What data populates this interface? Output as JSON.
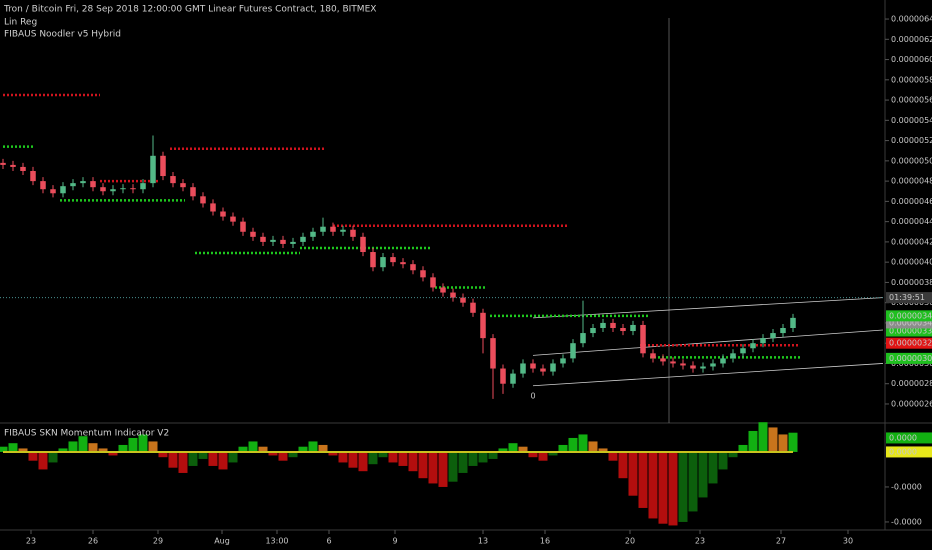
{
  "chart_data": [
    {
      "type": "candlestick",
      "title": "Tron / Bitcoin Fri, 28 Sep 2018 12:00:00 GMT Linear Futures Contract, 180, BITMEX",
      "indicators": [
        "Lin Reg",
        "FIBAUS Noodler v5 Hybrid"
      ],
      "x": [
        0,
        1,
        2,
        3,
        4,
        5,
        6,
        7,
        8,
        9,
        10,
        11,
        12,
        13,
        14,
        15,
        16,
        17,
        18,
        19,
        20,
        21,
        22,
        23,
        24,
        25,
        26,
        27,
        28,
        29,
        30,
        31,
        32,
        33,
        34,
        35,
        36,
        37,
        38,
        39,
        40,
        41,
        42,
        43,
        44,
        45,
        46,
        47,
        48,
        49,
        50,
        51,
        52,
        53,
        54,
        55,
        56,
        57,
        58,
        59,
        60,
        61,
        62,
        63,
        64,
        65,
        66,
        67,
        68,
        69,
        70,
        71,
        72,
        73,
        74,
        75,
        76,
        77,
        78,
        79
      ],
      "open": [
        4.98e-06,
        4.96e-06,
        4.94e-06,
        4.9e-06,
        4.8e-06,
        4.72e-06,
        4.68e-06,
        4.75e-06,
        4.78e-06,
        4.8e-06,
        4.74e-06,
        4.7e-06,
        4.72e-06,
        4.73e-06,
        4.72e-06,
        4.78e-06,
        5.05e-06,
        4.85e-06,
        4.78e-06,
        4.74e-06,
        4.65e-06,
        4.58e-06,
        4.5e-06,
        4.45e-06,
        4.4e-06,
        4.3e-06,
        4.25e-06,
        4.2e-06,
        4.22e-06,
        4.18e-06,
        4.2e-06,
        4.25e-06,
        4.3e-06,
        4.35e-06,
        4.3e-06,
        4.32e-06,
        4.25e-06,
        4.1e-06,
        3.95e-06,
        4.05e-06,
        4e-06,
        3.98e-06,
        3.92e-06,
        3.85e-06,
        3.75e-06,
        3.7e-06,
        3.65e-06,
        3.6e-06,
        3.5e-06,
        3.25e-06,
        2.95e-06,
        2.8e-06,
        2.9e-06,
        3e-06,
        2.95e-06,
        2.92e-06,
        3e-06,
        3.05e-06,
        3.2e-06,
        3.3e-06,
        3.35e-06,
        3.4e-06,
        3.35e-06,
        3.32e-06,
        3.38e-06,
        3.1e-06,
        3.05e-06,
        3.02e-06,
        3e-06,
        2.98e-06,
        2.95e-06,
        2.97e-06,
        3e-06,
        3.05e-06,
        3.1e-06,
        3.15e-06,
        3.2e-06,
        3.25e-06,
        3.3e-06,
        3.35e-06
      ],
      "high": [
        5.02e-06,
        5e-06,
        4.98e-06,
        4.94e-06,
        4.84e-06,
        4.76e-06,
        4.79e-06,
        4.82e-06,
        4.84e-06,
        4.84e-06,
        4.78e-06,
        4.76e-06,
        4.77e-06,
        4.77e-06,
        4.82e-06,
        5.25e-06,
        5.09e-06,
        4.89e-06,
        4.82e-06,
        4.78e-06,
        4.69e-06,
        4.62e-06,
        4.54e-06,
        4.49e-06,
        4.44e-06,
        4.34e-06,
        4.29e-06,
        4.26e-06,
        4.26e-06,
        4.24e-06,
        4.29e-06,
        4.34e-06,
        4.44e-06,
        4.39e-06,
        4.36e-06,
        4.36e-06,
        4.29e-06,
        4.14e-06,
        4.09e-06,
        4.09e-06,
        4.04e-06,
        4.02e-06,
        3.96e-06,
        3.89e-06,
        3.79e-06,
        3.74e-06,
        3.69e-06,
        3.64e-06,
        3.54e-06,
        3.29e-06,
        2.99e-06,
        2.94e-06,
        3.04e-06,
        3.04e-06,
        2.99e-06,
        3.04e-06,
        3.09e-06,
        3.24e-06,
        3.62e-06,
        3.39e-06,
        3.44e-06,
        3.44e-06,
        3.39e-06,
        3.42e-06,
        3.42e-06,
        3.14e-06,
        3.09e-06,
        3.06e-06,
        3.04e-06,
        3.02e-06,
        3.01e-06,
        3.04e-06,
        3.09e-06,
        3.14e-06,
        3.19e-06,
        3.24e-06,
        3.29e-06,
        3.34e-06,
        3.39e-06,
        3.49e-06
      ],
      "low": [
        4.92e-06,
        4.9e-06,
        4.86e-06,
        4.76e-06,
        4.68e-06,
        4.64e-06,
        4.64e-06,
        4.71e-06,
        4.74e-06,
        4.7e-06,
        4.66e-06,
        4.66e-06,
        4.68e-06,
        4.68e-06,
        4.68e-06,
        4.74e-06,
        4.81e-06,
        4.74e-06,
        4.7e-06,
        4.61e-06,
        4.54e-06,
        4.46e-06,
        4.41e-06,
        4.36e-06,
        4.26e-06,
        4.21e-06,
        4.16e-06,
        4.16e-06,
        4.14e-06,
        4.14e-06,
        4.16e-06,
        4.21e-06,
        4.26e-06,
        4.26e-06,
        4.26e-06,
        4.21e-06,
        4.06e-06,
        3.91e-06,
        3.91e-06,
        3.96e-06,
        3.94e-06,
        3.88e-06,
        3.81e-06,
        3.71e-06,
        3.66e-06,
        3.61e-06,
        3.56e-06,
        3.46e-06,
        3.1e-06,
        2.65e-06,
        2.7e-06,
        2.76e-06,
        2.86e-06,
        2.91e-06,
        2.88e-06,
        2.88e-06,
        2.96e-06,
        3.01e-06,
        3.16e-06,
        3.26e-06,
        3.31e-06,
        3.31e-06,
        3.28e-06,
        3.28e-06,
        3.06e-06,
        3.01e-06,
        2.98e-06,
        2.96e-06,
        2.94e-06,
        2.91e-06,
        2.91e-06,
        2.93e-06,
        2.96e-06,
        3.01e-06,
        3.06e-06,
        3.11e-06,
        3.16e-06,
        3.21e-06,
        3.26e-06,
        3.31e-06
      ],
      "close": [
        4.96e-06,
        4.94e-06,
        4.9e-06,
        4.8e-06,
        4.72e-06,
        4.68e-06,
        4.75e-06,
        4.78e-06,
        4.8e-06,
        4.74e-06,
        4.7e-06,
        4.72e-06,
        4.73e-06,
        4.72e-06,
        4.78e-06,
        5.05e-06,
        4.85e-06,
        4.78e-06,
        4.74e-06,
        4.65e-06,
        4.58e-06,
        4.5e-06,
        4.45e-06,
        4.4e-06,
        4.3e-06,
        4.25e-06,
        4.2e-06,
        4.22e-06,
        4.18e-06,
        4.2e-06,
        4.25e-06,
        4.3e-06,
        4.35e-06,
        4.3e-06,
        4.32e-06,
        4.25e-06,
        4.1e-06,
        3.95e-06,
        4.05e-06,
        4e-06,
        3.98e-06,
        3.92e-06,
        3.85e-06,
        3.75e-06,
        3.7e-06,
        3.65e-06,
        3.6e-06,
        3.5e-06,
        3.25e-06,
        2.95e-06,
        2.8e-06,
        2.9e-06,
        3e-06,
        2.95e-06,
        2.92e-06,
        3e-06,
        3.05e-06,
        3.2e-06,
        3.3e-06,
        3.35e-06,
        3.4e-06,
        3.35e-06,
        3.32e-06,
        3.38e-06,
        3.1e-06,
        3.05e-06,
        3.02e-06,
        3e-06,
        2.98e-06,
        2.95e-06,
        2.97e-06,
        3e-06,
        3.05e-06,
        3.1e-06,
        3.15e-06,
        3.2e-06,
        3.25e-06,
        3.3e-06,
        3.35e-06,
        3.45e-06
      ],
      "up_color": "#53b987",
      "down_color": "#eb4d5c",
      "levels": [
        {
          "x": [
            0,
            9.7
          ],
          "value": 5.65e-06,
          "color": "#d0141e"
        },
        {
          "x": [
            16.7,
            32.2
          ],
          "value": 5.12e-06,
          "color": "#d0141e"
        },
        {
          "x": [
            9.7,
            15.7
          ],
          "value": 4.8e-06,
          "color": "#d0141e"
        },
        {
          "x": [
            33,
            56.5
          ],
          "value": 4.36e-06,
          "color": "#d0141e"
        },
        {
          "x": [
            63.7,
            79.7
          ],
          "value": 3.18e-06,
          "color": "#d0141e"
        },
        {
          "x": [
            0,
            3.2
          ],
          "value": 5.14e-06,
          "color": "#1ec81e"
        },
        {
          "x": [
            5.7,
            18.2
          ],
          "value": 4.61e-06,
          "color": "#1ec81e"
        },
        {
          "x": [
            19.2,
            29.7
          ],
          "value": 4.09e-06,
          "color": "#1ec81e"
        },
        {
          "x": [
            29.7,
            42.7
          ],
          "value": 4.14e-06,
          "color": "#1ec81e"
        },
        {
          "x": [
            43.2,
            48.2
          ],
          "value": 3.75e-06,
          "color": "#1ec81e"
        },
        {
          "x": [
            48.7,
            64.7
          ],
          "value": 3.47e-06,
          "color": "#1ec81e"
        },
        {
          "x": [
            64.7,
            79.7
          ],
          "value": 3.06e-06,
          "color": "#1ec81e"
        }
      ],
      "channel": [
        {
          "x": [
            53,
            88
          ],
          "values": [
            3.45e-06,
            3.65e-06
          ],
          "color": "#cfcfcf"
        },
        {
          "x": [
            53,
            88
          ],
          "values": [
            3.08e-06,
            3.33e-06
          ],
          "color": "#cfcfcf"
        },
        {
          "x": [
            53,
            88
          ],
          "values": [
            2.78e-06,
            3e-06
          ],
          "color": "#cfcfcf"
        }
      ],
      "annotations": [
        {
          "text": "0",
          "x": 53,
          "y": 2.68e-06
        }
      ],
      "last_price": {
        "value": 3.65e-06,
        "label": "01:39:51",
        "color": "#4a8f8f"
      },
      "price_labels": [
        {
          "value": 3.47e-06,
          "label": "0.00000347",
          "color": "#1fbf1f"
        },
        {
          "value": 3.4e-06,
          "label": "0.00000340",
          "color": "#8c8c8c"
        },
        {
          "value": 3.32e-06,
          "label": "0.00000332",
          "color": "#1fbf1f"
        },
        {
          "value": 3.2e-06,
          "label": "0.00000320",
          "color": "#e01414"
        },
        {
          "value": 3.05e-06,
          "label": "0.00000305",
          "color": "#1fbf1f"
        }
      ],
      "xlim": [
        -0.3,
        88.2
      ],
      "xticks": [
        {
          "value": 2.8,
          "label": "23"
        },
        {
          "value": 9,
          "label": "26"
        },
        {
          "value": 15.5,
          "label": "29"
        },
        {
          "value": 21.9,
          "label": "Aug"
        },
        {
          "value": 27.4,
          "label": "13:00"
        },
        {
          "value": 32.6,
          "label": "6"
        },
        {
          "value": 39.2,
          "label": "9"
        },
        {
          "value": 48,
          "label": "13"
        },
        {
          "value": 54.2,
          "label": "16"
        },
        {
          "value": 62.7,
          "label": "20"
        },
        {
          "value": 69.7,
          "label": "23"
        },
        {
          "value": 77.8,
          "label": "27"
        },
        {
          "value": 84.5,
          "label": "30"
        }
      ],
      "ylim": [
        2.422e-06,
        6.588e-06
      ],
      "yticks": [
        {
          "value": 2.6e-06,
          "label": "0.00000260"
        },
        {
          "value": 2.8e-06,
          "label": "0.00000280"
        },
        {
          "value": 3e-06,
          "label": "0.00000300"
        },
        {
          "value": 3.2e-06,
          "label": "0.00000320"
        },
        {
          "value": 3.4e-06,
          "label": "0.00000340"
        },
        {
          "value": 3.6e-06,
          "label": "0.00000360"
        },
        {
          "value": 3.8e-06,
          "label": "0.00000380"
        },
        {
          "value": 4e-06,
          "label": "0.00000400"
        },
        {
          "value": 4.2e-06,
          "label": "0.00000420"
        },
        {
          "value": 4.4e-06,
          "label": "0.00000440"
        },
        {
          "value": 4.6e-06,
          "label": "0.00000460"
        },
        {
          "value": 4.8e-06,
          "label": "0.00000480"
        },
        {
          "value": 5e-06,
          "label": "0.00000500"
        },
        {
          "value": 5.2e-06,
          "label": "0.00000520"
        },
        {
          "value": 5.4e-06,
          "label": "0.00000540"
        },
        {
          "value": 5.6e-06,
          "label": "0.00000560"
        },
        {
          "value": 5.8e-06,
          "label": "0.00000580"
        },
        {
          "value": 6e-06,
          "label": "0.00000600"
        },
        {
          "value": 6.2e-06,
          "label": "0.00000620"
        },
        {
          "value": 6.4e-06,
          "label": "0.00000640"
        }
      ]
    },
    {
      "type": "bar",
      "title": "FIBAUS SKN Momentum Indicator V2",
      "x": [
        0,
        1,
        2,
        3,
        4,
        5,
        6,
        7,
        8,
        9,
        10,
        11,
        12,
        13,
        14,
        15,
        16,
        17,
        18,
        19,
        20,
        21,
        22,
        23,
        24,
        25,
        26,
        27,
        28,
        29,
        30,
        31,
        32,
        33,
        34,
        35,
        36,
        37,
        38,
        39,
        40,
        41,
        42,
        43,
        44,
        45,
        46,
        47,
        48,
        49,
        50,
        51,
        52,
        53,
        54,
        55,
        56,
        57,
        58,
        59,
        60,
        61,
        62,
        63,
        64,
        65,
        66,
        67,
        68,
        69,
        70,
        71,
        72,
        73,
        74,
        75,
        76,
        77,
        78,
        79
      ],
      "values": [
        3e-06,
        5e-06,
        2e-06,
        -5e-06,
        -1e-05,
        -6e-06,
        2e-06,
        6e-06,
        9e-06,
        5e-06,
        2e-06,
        -2e-06,
        4e-06,
        8e-06,
        1e-05,
        6e-06,
        -3e-06,
        -9e-06,
        -1.2e-05,
        -8e-06,
        -4e-06,
        -8e-06,
        -1e-05,
        -6e-06,
        3e-06,
        6e-06,
        3e-06,
        -2e-06,
        -5e-06,
        -3e-06,
        3e-06,
        6e-06,
        4e-06,
        -2e-06,
        -6e-06,
        -9e-06,
        -1.1e-05,
        -7e-06,
        -3e-06,
        -6e-06,
        -8e-06,
        -1.1e-05,
        -1.5e-05,
        -1.8e-05,
        -2e-05,
        -1.7e-05,
        -1.2e-05,
        -8e-06,
        -6e-06,
        -4e-06,
        2e-06,
        5e-06,
        3e-06,
        -3e-06,
        -5e-06,
        -2e-06,
        4e-06,
        8e-06,
        1e-05,
        6e-06,
        2e-06,
        -5e-06,
        -1.5e-05,
        -2.5e-05,
        -3.2e-05,
        -3.8e-05,
        -4.1e-05,
        -4.2e-05,
        -4e-05,
        -3.4e-05,
        -2.6e-05,
        -1.8e-05,
        -1e-05,
        -3e-06,
        4e-06,
        1.2e-05,
        1.7e-05,
        1.4e-05,
        1e-05,
        1.1e-05
      ],
      "colors": {
        "rising_positive": "#12b012",
        "falling_positive": "#c8741c",
        "falling_negative": "#b40e0e",
        "rising_negative": "#0c5f0c"
      },
      "zero_line_color": "#c9c21e",
      "price_labels": [
        {
          "value": 0,
          "label": "0.0000",
          "color": "#12b012",
          "offset": -1
        },
        {
          "value": 0,
          "label": "0.0000",
          "color": "#e8e81a",
          "offset": 0
        }
      ],
      "xlim": [
        -0.3,
        88.2
      ],
      "ylim": [
        -4.46e-05,
        1.54e-05
      ],
      "yticks": [
        {
          "value": -2e-05,
          "label": "-0.0000"
        },
        {
          "value": -4e-05,
          "label": "-0.0000"
        }
      ]
    }
  ]
}
